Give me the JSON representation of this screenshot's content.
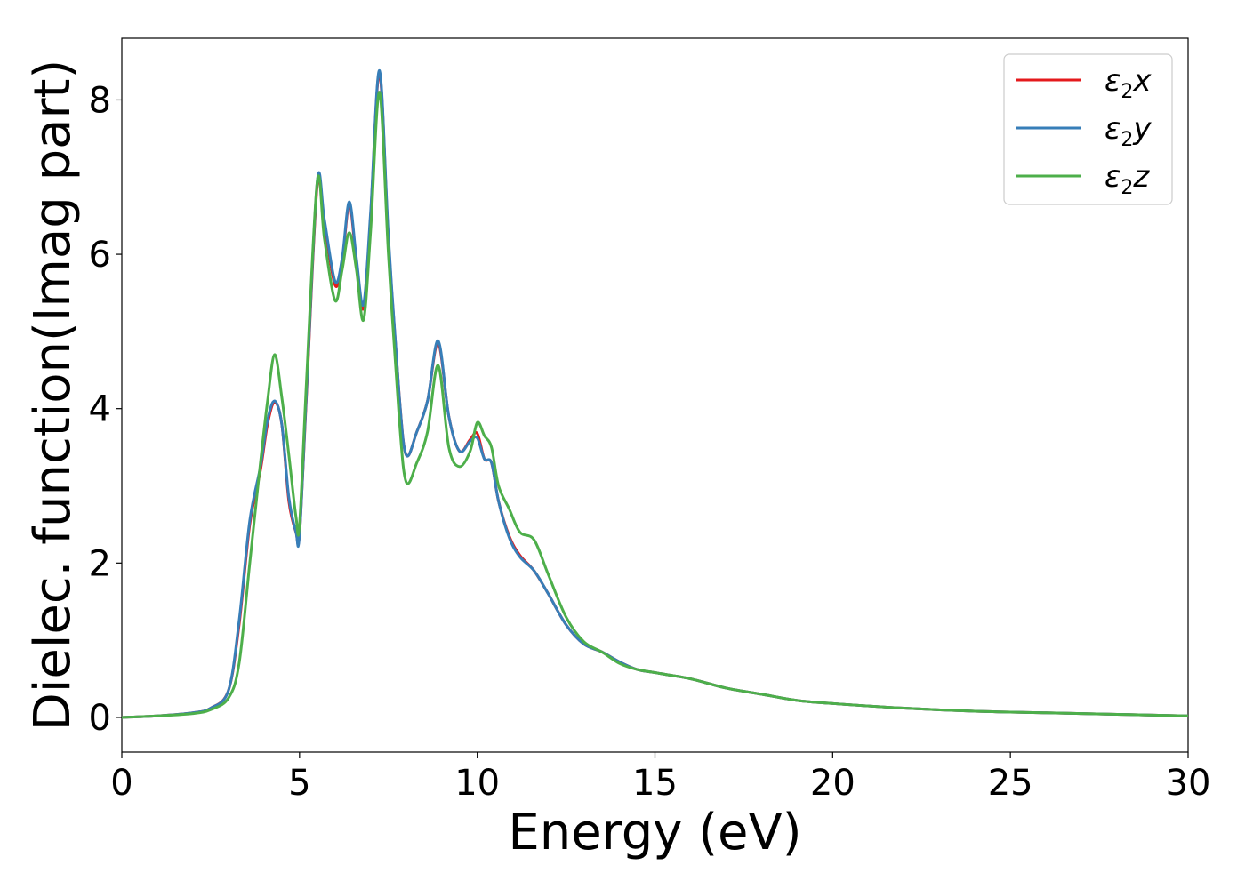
{
  "chart_data": {
    "type": "line",
    "xlabel": "Energy (eV)",
    "ylabel": "Dielec. function(Imag part)",
    "xlim": [
      0,
      30
    ],
    "ylim": [
      -0.45,
      8.8
    ],
    "xticks": [
      0,
      5,
      10,
      15,
      20,
      25,
      30
    ],
    "yticks": [
      0,
      2,
      4,
      6,
      8
    ],
    "xtick_labels": [
      "0",
      "5",
      "10",
      "15",
      "20",
      "25",
      "30"
    ],
    "ytick_labels": [
      "0",
      "2",
      "4",
      "6",
      "8"
    ],
    "grid": false,
    "legend_position": "top-right",
    "series": [
      {
        "name": "ε2x",
        "legend_base": "ε",
        "legend_sub": "2",
        "legend_tail": "x",
        "color": "#e41a1c",
        "x": [
          0,
          1,
          2,
          2.5,
          3.0,
          3.3,
          3.6,
          3.9,
          4.1,
          4.3,
          4.5,
          4.7,
          4.9,
          5.0,
          5.2,
          5.5,
          5.7,
          6.0,
          6.2,
          6.4,
          6.6,
          6.8,
          7.0,
          7.25,
          7.5,
          7.8,
          8.0,
          8.3,
          8.6,
          8.9,
          9.2,
          9.5,
          9.8,
          10.0,
          10.2,
          10.4,
          10.6,
          10.9,
          11.2,
          11.6,
          12.0,
          12.5,
          13.0,
          13.5,
          14.0,
          14.5,
          15.0,
          16.0,
          17.0,
          18.0,
          19.0,
          20.0,
          22.0,
          24.0,
          26.0,
          28.0,
          30.0
        ],
        "values": [
          0.0,
          0.02,
          0.06,
          0.12,
          0.35,
          1.2,
          2.5,
          3.2,
          3.8,
          4.08,
          3.8,
          2.8,
          2.4,
          2.38,
          4.2,
          6.9,
          6.4,
          5.6,
          5.9,
          6.65,
          5.9,
          5.3,
          6.5,
          8.35,
          6.2,
          4.2,
          3.4,
          3.7,
          4.1,
          4.85,
          3.9,
          3.45,
          3.6,
          3.68,
          3.35,
          3.3,
          2.8,
          2.35,
          2.1,
          1.9,
          1.6,
          1.2,
          0.95,
          0.85,
          0.72,
          0.62,
          0.58,
          0.5,
          0.38,
          0.3,
          0.22,
          0.18,
          0.12,
          0.08,
          0.06,
          0.04,
          0.02
        ]
      },
      {
        "name": "ε2y",
        "legend_base": "ε",
        "legend_sub": "2",
        "legend_tail": "y",
        "color": "#377eb8",
        "x": [
          0,
          1,
          2,
          2.5,
          3.0,
          3.3,
          3.6,
          3.9,
          4.1,
          4.3,
          4.5,
          4.7,
          4.9,
          5.0,
          5.2,
          5.5,
          5.7,
          6.0,
          6.2,
          6.4,
          6.6,
          6.8,
          7.0,
          7.25,
          7.5,
          7.8,
          8.0,
          8.3,
          8.6,
          8.9,
          9.2,
          9.5,
          9.8,
          10.0,
          10.2,
          10.4,
          10.6,
          10.9,
          11.2,
          11.6,
          12.0,
          12.5,
          13.0,
          13.5,
          14.0,
          14.5,
          15.0,
          16.0,
          17.0,
          18.0,
          19.0,
          20.0,
          22.0,
          24.0,
          26.0,
          28.0,
          30.0
        ],
        "values": [
          0.0,
          0.02,
          0.06,
          0.12,
          0.35,
          1.25,
          2.55,
          3.25,
          3.85,
          4.1,
          3.8,
          2.85,
          2.4,
          2.36,
          4.25,
          6.95,
          6.45,
          5.65,
          5.95,
          6.68,
          5.95,
          5.35,
          6.55,
          8.38,
          6.25,
          4.2,
          3.4,
          3.7,
          4.1,
          4.88,
          3.9,
          3.45,
          3.58,
          3.62,
          3.35,
          3.3,
          2.8,
          2.33,
          2.08,
          1.9,
          1.6,
          1.2,
          0.95,
          0.85,
          0.72,
          0.62,
          0.58,
          0.5,
          0.38,
          0.3,
          0.22,
          0.18,
          0.12,
          0.08,
          0.06,
          0.04,
          0.02
        ]
      },
      {
        "name": "ε2z",
        "legend_base": "ε",
        "legend_sub": "2",
        "legend_tail": "z",
        "color": "#4daf4a",
        "x": [
          0,
          1,
          2,
          2.5,
          3.0,
          3.3,
          3.6,
          3.9,
          4.1,
          4.3,
          4.5,
          4.7,
          4.9,
          5.0,
          5.2,
          5.5,
          5.7,
          6.0,
          6.2,
          6.4,
          6.6,
          6.8,
          7.0,
          7.25,
          7.5,
          7.8,
          8.0,
          8.3,
          8.6,
          8.9,
          9.2,
          9.5,
          9.8,
          10.0,
          10.2,
          10.4,
          10.6,
          10.9,
          11.2,
          11.6,
          12.0,
          12.5,
          13.0,
          13.5,
          14.0,
          14.5,
          15.0,
          16.0,
          17.0,
          18.0,
          19.0,
          20.0,
          22.0,
          24.0,
          26.0,
          28.0,
          30.0
        ],
        "values": [
          0.0,
          0.02,
          0.05,
          0.1,
          0.25,
          0.7,
          2.0,
          3.3,
          4.1,
          4.7,
          4.15,
          3.4,
          2.6,
          2.5,
          4.4,
          6.95,
          6.2,
          5.4,
          5.8,
          6.28,
          5.8,
          5.15,
          6.3,
          8.1,
          6.0,
          3.9,
          3.05,
          3.3,
          3.7,
          4.56,
          3.5,
          3.25,
          3.45,
          3.82,
          3.65,
          3.5,
          3.0,
          2.7,
          2.4,
          2.3,
          1.85,
          1.3,
          0.98,
          0.85,
          0.7,
          0.62,
          0.58,
          0.5,
          0.38,
          0.3,
          0.22,
          0.18,
          0.12,
          0.08,
          0.06,
          0.04,
          0.02
        ]
      }
    ]
  }
}
